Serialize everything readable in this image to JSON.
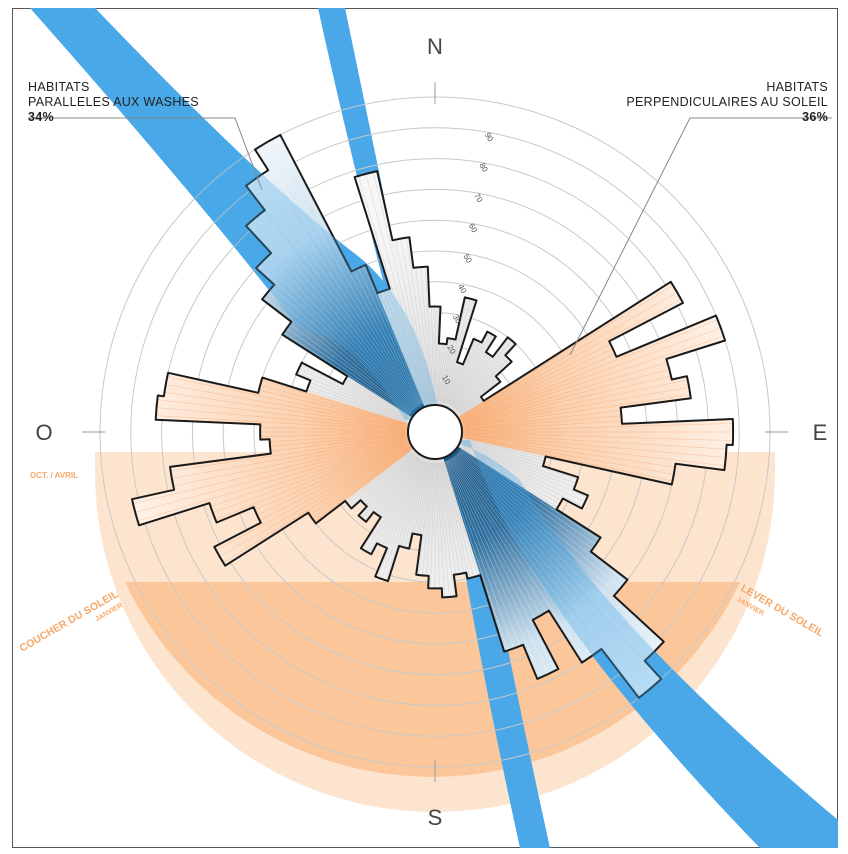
{
  "chart_data": {
    "type": "polar-bar",
    "cardinals": {
      "north": "N",
      "south": "S",
      "east": "E",
      "west": "O"
    },
    "ring_labels": [
      "10",
      "20",
      "30",
      "40",
      "50",
      "60",
      "70",
      "80",
      "90"
    ],
    "annotations": {
      "left": {
        "line1": "HABITATS",
        "line2": "PARALLELES AUX WASHES",
        "value": "34%"
      },
      "right": {
        "line1": "HABITATS",
        "line2": "PERPENDICULAIRES AU SOLEIL",
        "value": "36%"
      }
    },
    "sun_labels": {
      "oct_avril": "OCT. / AVRIL",
      "coucher": "COUCHER DU SOLEIL",
      "coucher_sub": "JANVIER",
      "lever": "LEVER DU SOLEIL",
      "lever_sub": "JANVIER"
    },
    "bin_width_deg": 5,
    "bins": [
      {
        "bearing": 0,
        "value": 32,
        "class": "neutral"
      },
      {
        "bearing": 5,
        "value": 20,
        "class": "neutral"
      },
      {
        "bearing": 10,
        "value": 22,
        "class": "neutral"
      },
      {
        "bearing": 15,
        "value": 36,
        "class": "neutral"
      },
      {
        "bearing": 20,
        "value": 15,
        "class": "neutral"
      },
      {
        "bearing": 25,
        "value": 24,
        "class": "neutral"
      },
      {
        "bearing": 30,
        "value": 28,
        "class": "neutral"
      },
      {
        "bearing": 35,
        "value": 22,
        "class": "neutral"
      },
      {
        "bearing": 40,
        "value": 30,
        "class": "neutral"
      },
      {
        "bearing": 45,
        "value": 25,
        "class": "neutral"
      },
      {
        "bearing": 50,
        "value": 18,
        "class": "neutral"
      },
      {
        "bearing": 55,
        "value": 10,
        "class": "neutral"
      },
      {
        "bearing": 60,
        "value": 82,
        "class": "sun"
      },
      {
        "bearing": 65,
        "value": 55,
        "class": "sun"
      },
      {
        "bearing": 70,
        "value": 90,
        "class": "sun"
      },
      {
        "bearing": 75,
        "value": 70,
        "class": "sun"
      },
      {
        "bearing": 80,
        "value": 75,
        "class": "sun"
      },
      {
        "bearing": 85,
        "value": 52,
        "class": "sun"
      },
      {
        "bearing": 90,
        "value": 88,
        "class": "sun"
      },
      {
        "bearing": 95,
        "value": 86,
        "class": "sun"
      },
      {
        "bearing": 100,
        "value": 70,
        "class": "sun"
      },
      {
        "bearing": 105,
        "value": 28,
        "class": "neutral"
      },
      {
        "bearing": 110,
        "value": 40,
        "class": "neutral"
      },
      {
        "bearing": 115,
        "value": 45,
        "class": "neutral"
      },
      {
        "bearing": 120,
        "value": 38,
        "class": "neutral"
      },
      {
        "bearing": 125,
        "value": 55,
        "class": "wash"
      },
      {
        "bearing": 130,
        "value": 70,
        "class": "wash"
      },
      {
        "bearing": 135,
        "value": 92,
        "class": "wash"
      },
      {
        "bearing": 140,
        "value": 100,
        "class": "wash"
      },
      {
        "bearing": 145,
        "value": 80,
        "class": "wash"
      },
      {
        "bearing": 150,
        "value": 60,
        "class": "wash"
      },
      {
        "bearing": 155,
        "value": 78,
        "class": "wash"
      },
      {
        "bearing": 160,
        "value": 66,
        "class": "wash"
      },
      {
        "bearing": 165,
        "value": 40,
        "class": "neutral"
      },
      {
        "bearing": 170,
        "value": 38,
        "class": "neutral"
      },
      {
        "bearing": 175,
        "value": 45,
        "class": "neutral"
      },
      {
        "bearing": 180,
        "value": 42,
        "class": "neutral"
      },
      {
        "bearing": 185,
        "value": 38,
        "class": "neutral"
      },
      {
        "bearing": 190,
        "value": 25,
        "class": "neutral"
      },
      {
        "bearing": 195,
        "value": 30,
        "class": "neutral"
      },
      {
        "bearing": 200,
        "value": 42,
        "class": "neutral"
      },
      {
        "bearing": 205,
        "value": 32,
        "class": "neutral"
      },
      {
        "bearing": 210,
        "value": 36,
        "class": "neutral"
      },
      {
        "bearing": 215,
        "value": 24,
        "class": "neutral"
      },
      {
        "bearing": 220,
        "value": 28,
        "class": "neutral"
      },
      {
        "bearing": 225,
        "value": 24,
        "class": "neutral"
      },
      {
        "bearing": 230,
        "value": 28,
        "class": "neutral"
      },
      {
        "bearing": 235,
        "value": 40,
        "class": "sun"
      },
      {
        "bearing": 240,
        "value": 72,
        "class": "sun"
      },
      {
        "bearing": 245,
        "value": 55,
        "class": "sun"
      },
      {
        "bearing": 250,
        "value": 68,
        "class": "sun"
      },
      {
        "bearing": 255,
        "value": 92,
        "class": "sun"
      },
      {
        "bearing": 260,
        "value": 78,
        "class": "sun"
      },
      {
        "bearing": 265,
        "value": 45,
        "class": "sun"
      },
      {
        "bearing": 270,
        "value": 48,
        "class": "sun"
      },
      {
        "bearing": 275,
        "value": 82,
        "class": "sun"
      },
      {
        "bearing": 280,
        "value": 80,
        "class": "sun"
      },
      {
        "bearing": 285,
        "value": 50,
        "class": "sun"
      },
      {
        "bearing": 290,
        "value": 35,
        "class": "neutral"
      },
      {
        "bearing": 295,
        "value": 40,
        "class": "neutral"
      },
      {
        "bearing": 300,
        "value": 25,
        "class": "neutral"
      },
      {
        "bearing": 305,
        "value": 50,
        "class": "wash"
      },
      {
        "bearing": 310,
        "value": 62,
        "class": "wash"
      },
      {
        "bearing": 315,
        "value": 70,
        "class": "wash"
      },
      {
        "bearing": 320,
        "value": 82,
        "class": "wash"
      },
      {
        "bearing": 325,
        "value": 92,
        "class": "wash"
      },
      {
        "bearing": 330,
        "value": 100,
        "class": "wash"
      },
      {
        "bearing": 335,
        "value": 50,
        "class": "wash"
      },
      {
        "bearing": 340,
        "value": 40,
        "class": "neutral"
      },
      {
        "bearing": 345,
        "value": 78,
        "class": "neutral"
      },
      {
        "bearing": 350,
        "value": 55,
        "class": "neutral"
      },
      {
        "bearing": 355,
        "value": 45,
        "class": "neutral"
      }
    ],
    "colors": {
      "wash_band": "#4aa8e8",
      "wash_bar": "#1f5f8b",
      "sun_bar": "#f7b98a",
      "neutral_bar": "#ececec",
      "sun_zone": "#fbc79a",
      "sun_zone_light": "#fde4cf",
      "outline": "#1a1a1a"
    },
    "grid": true
  }
}
